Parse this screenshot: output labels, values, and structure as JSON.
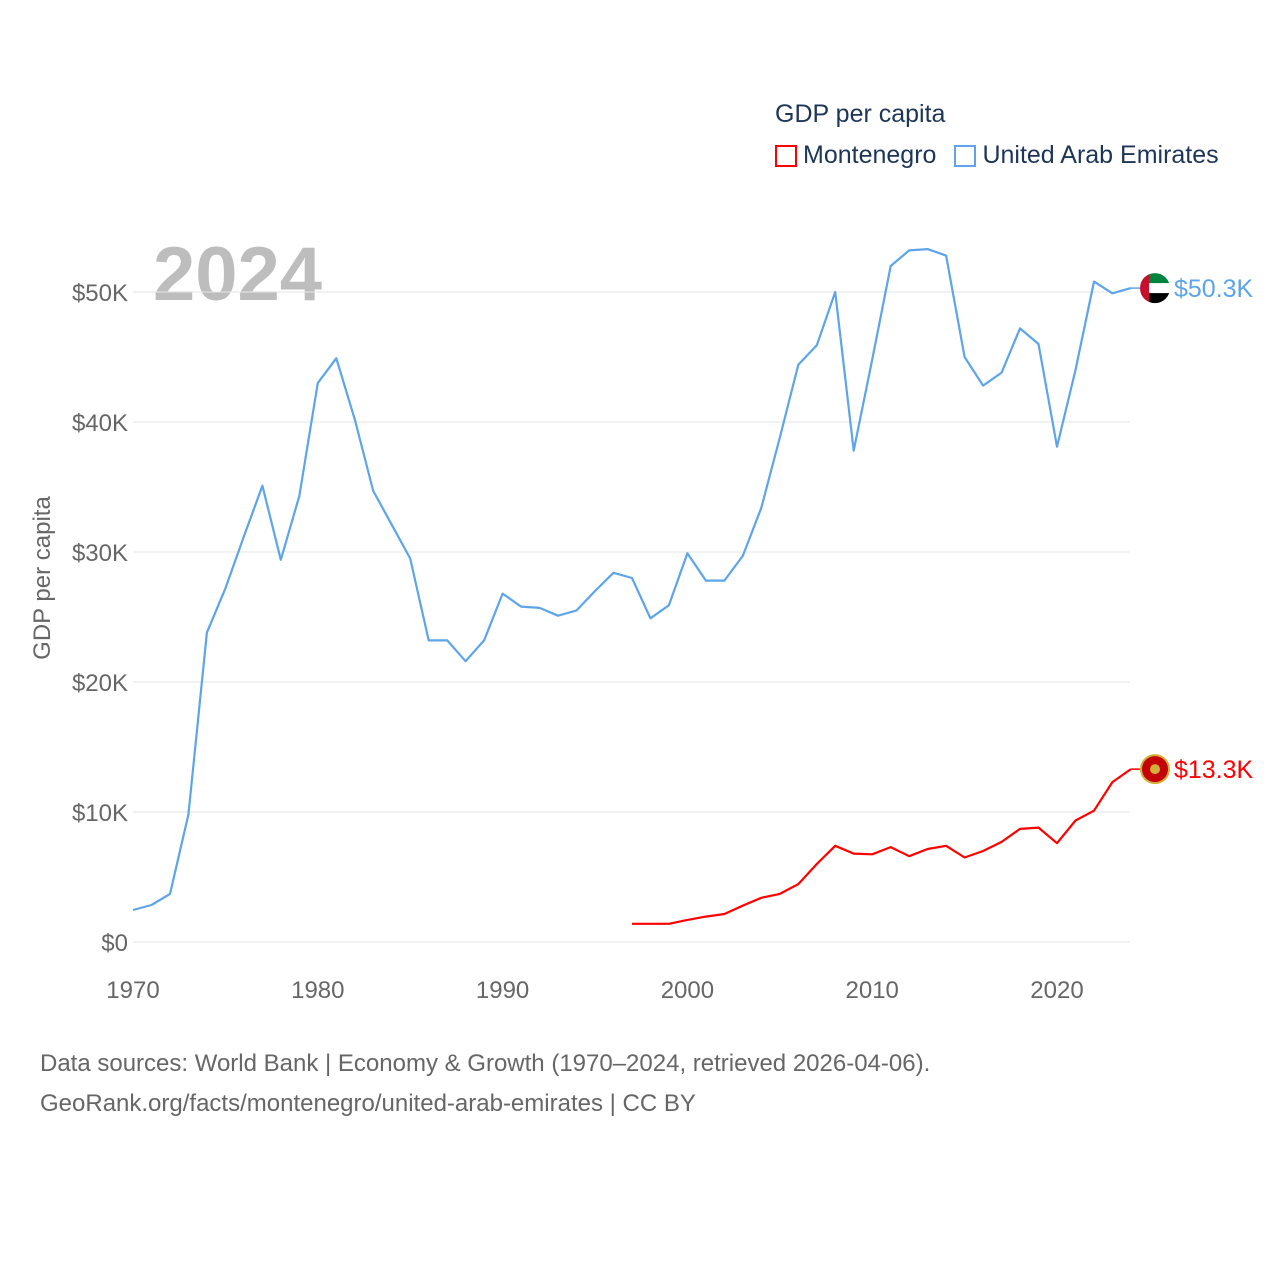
{
  "chart_data": {
    "type": "line",
    "title": "GDP per capita",
    "year_label": "2024",
    "ylabel": "GDP per capita",
    "xlabel": "",
    "xlim": [
      1970,
      2024
    ],
    "ylim": [
      0,
      55000
    ],
    "x_ticks": [
      1970,
      1980,
      1990,
      2000,
      2010,
      2020
    ],
    "x_tick_labels": [
      "1970",
      "1980",
      "1990",
      "2000",
      "2010",
      "2020"
    ],
    "y_ticks": [
      0,
      10000,
      20000,
      30000,
      40000,
      50000
    ],
    "y_tick_labels": [
      "$0",
      "$10K",
      "$20K",
      "$30K",
      "$40K",
      "$50K"
    ],
    "grid": true,
    "legend_position": "top-right",
    "series": [
      {
        "name": "Montenegro",
        "color": "#ff0000",
        "end_label": "$13.3K",
        "flag": "montenegro-flag",
        "x": [
          1997,
          1998,
          1999,
          2000,
          2001,
          2002,
          2003,
          2004,
          2005,
          2006,
          2007,
          2008,
          2009,
          2010,
          2011,
          2012,
          2013,
          2014,
          2015,
          2016,
          2017,
          2018,
          2019,
          2020,
          2021,
          2022,
          2023,
          2024
        ],
        "values": [
          1400,
          1400,
          1400,
          1700,
          1950,
          2150,
          2800,
          3400,
          3700,
          4450,
          6000,
          7400,
          6800,
          6750,
          7300,
          6600,
          7150,
          7400,
          6500,
          7000,
          7700,
          8700,
          8800,
          7600,
          9350,
          10100,
          12300,
          13300
        ]
      },
      {
        "name": "United Arab Emirates",
        "color": "#5da5e8",
        "end_label": "$50.3K",
        "flag": "uae-flag",
        "x": [
          1970,
          1971,
          1972,
          1973,
          1974,
          1975,
          1976,
          1977,
          1978,
          1979,
          1980,
          1981,
          1982,
          1983,
          1984,
          1985,
          1986,
          1987,
          1988,
          1989,
          1990,
          1991,
          1992,
          1993,
          1994,
          1995,
          1996,
          1997,
          1998,
          1999,
          2000,
          2001,
          2002,
          2003,
          2004,
          2005,
          2006,
          2007,
          2008,
          2009,
          2010,
          2011,
          2012,
          2013,
          2014,
          2015,
          2016,
          2017,
          2018,
          2019,
          2020,
          2021,
          2022,
          2023,
          2024
        ],
        "values": [
          2460,
          2850,
          3700,
          9800,
          23800,
          27200,
          31200,
          35100,
          29400,
          34300,
          43000,
          44900,
          40200,
          34700,
          32100,
          29500,
          23200,
          23200,
          21600,
          23200,
          26800,
          25800,
          25700,
          25100,
          25500,
          27000,
          28400,
          28000,
          24900,
          25900,
          29900,
          27800,
          27800,
          29700,
          33400,
          38800,
          44400,
          45900,
          50000,
          37800,
          44800,
          52000,
          53200,
          53300,
          52800,
          45000,
          42800,
          43800,
          47200,
          46000,
          38100,
          44000,
          50800,
          49900,
          50300
        ]
      }
    ]
  },
  "footer": {
    "line1": "Data sources: World Bank | Economy & Growth (1970–2024, retrieved 2026-04-06).",
    "line2": "GeoRank.org/facts/montenegro/united-arab-emirates | CC BY"
  }
}
